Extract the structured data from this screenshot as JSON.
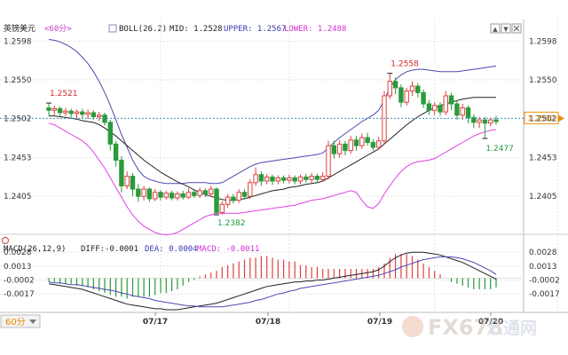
{
  "header": {
    "title": "英镑美元",
    "period": "<60分>",
    "indicator": "BOLL(26.2)",
    "mid_label": "MID: 1.2528",
    "upper_label": "UPPER: 1.2567",
    "lower_label": "LOWER: 1.2488"
  },
  "macd_header": {
    "name": "MACD(26,12,9)",
    "diff_label": "DIFF:-0.0001",
    "dea_label": "DEA: 0.0004",
    "macd_label": "MACD: -0.0011"
  },
  "footer": {
    "period_button": "60分"
  },
  "toolbar": {
    "up_arrow": "▲",
    "down_arrow": "▼"
  },
  "watermark": {
    "logo_text": "FX678",
    "cn_text": "汇通网"
  },
  "colors": {
    "up": "#e04040",
    "down": "#2a9a3a",
    "mid": "#222222",
    "upper": "#4a4ab0",
    "lower": "#e040e0",
    "price_line": "#3a9ac0",
    "current_box": "#f08c00"
  },
  "chart_data": [
    {
      "type": "candlestick",
      "title": "英镑美元",
      "ylim": [
        1.236,
        1.2605
      ],
      "yticks": [
        "1.2598",
        "1.2550",
        "1.2502",
        "1.2453",
        "1.2405"
      ],
      "xticks": [
        "07/17",
        "07/18",
        "07/19",
        "07/20"
      ],
      "current_price": "1.2502",
      "annotations": [
        {
          "text": "1.2521",
          "value": 1.2521
        },
        {
          "text": "1.2382",
          "value": 1.2382
        },
        {
          "text": "1.2558",
          "value": 1.2558
        },
        {
          "text": "1.2477",
          "value": 1.2477
        }
      ],
      "candles": [
        [
          1.2515,
          1.2512,
          1.2521,
          1.2505
        ],
        [
          1.2512,
          1.2514,
          1.2518,
          1.2506
        ],
        [
          1.2514,
          1.2509,
          1.2517,
          1.2504
        ],
        [
          1.2509,
          1.2511,
          1.2515,
          1.2505
        ],
        [
          1.2511,
          1.2508,
          1.2514,
          1.2503
        ],
        [
          1.2508,
          1.251,
          1.2513,
          1.2502
        ],
        [
          1.251,
          1.2507,
          1.2514,
          1.2502
        ],
        [
          1.2507,
          1.2509,
          1.2513,
          1.2501
        ],
        [
          1.2509,
          1.2504,
          1.2512,
          1.25
        ],
        [
          1.2504,
          1.2506,
          1.251,
          1.2499
        ],
        [
          1.2506,
          1.2497,
          1.2509,
          1.2493
        ],
        [
          1.2497,
          1.247,
          1.25,
          1.2462
        ],
        [
          1.247,
          1.245,
          1.2474,
          1.2442
        ],
        [
          1.245,
          1.2418,
          1.2455,
          1.241
        ],
        [
          1.2418,
          1.243,
          1.2436,
          1.2414
        ],
        [
          1.243,
          1.2414,
          1.2434,
          1.2405
        ],
        [
          1.2414,
          1.2405,
          1.242,
          1.2398
        ],
        [
          1.2405,
          1.2414,
          1.2418,
          1.24
        ],
        [
          1.2414,
          1.2402,
          1.2416,
          1.2398
        ],
        [
          1.2402,
          1.241,
          1.2414,
          1.2399
        ],
        [
          1.241,
          1.2404,
          1.2413,
          1.24
        ],
        [
          1.2404,
          1.2409,
          1.2412,
          1.2401
        ],
        [
          1.2409,
          1.2403,
          1.2412,
          1.24
        ],
        [
          1.2403,
          1.2408,
          1.2411,
          1.24
        ],
        [
          1.2408,
          1.2404,
          1.2412,
          1.2401
        ],
        [
          1.2404,
          1.241,
          1.2415,
          1.2402
        ],
        [
          1.241,
          1.2406,
          1.2414,
          1.2403
        ],
        [
          1.2406,
          1.2412,
          1.2416,
          1.2403
        ],
        [
          1.2412,
          1.2408,
          1.2415,
          1.2404
        ],
        [
          1.2408,
          1.2414,
          1.2418,
          1.2405
        ],
        [
          1.2414,
          1.2385,
          1.2416,
          1.2382
        ],
        [
          1.2385,
          1.2395,
          1.2399,
          1.2382
        ],
        [
          1.2395,
          1.2404,
          1.2408,
          1.2391
        ],
        [
          1.2404,
          1.24,
          1.2408,
          1.2396
        ],
        [
          1.24,
          1.241,
          1.2414,
          1.2397
        ],
        [
          1.241,
          1.2405,
          1.2414,
          1.2401
        ],
        [
          1.2405,
          1.2422,
          1.2426,
          1.2402
        ],
        [
          1.2422,
          1.2432,
          1.2441,
          1.2418
        ],
        [
          1.2432,
          1.2424,
          1.2436,
          1.2418
        ],
        [
          1.2424,
          1.2429,
          1.2433,
          1.242
        ],
        [
          1.2429,
          1.2424,
          1.2432,
          1.2419
        ],
        [
          1.2424,
          1.2428,
          1.2431,
          1.242
        ],
        [
          1.2428,
          1.2425,
          1.2431,
          1.2421
        ],
        [
          1.2425,
          1.2428,
          1.2432,
          1.2421
        ],
        [
          1.2428,
          1.2424,
          1.2431,
          1.242
        ],
        [
          1.2424,
          1.2429,
          1.2432,
          1.242
        ],
        [
          1.2429,
          1.2426,
          1.2433,
          1.2422
        ],
        [
          1.2426,
          1.243,
          1.2434,
          1.2422
        ],
        [
          1.243,
          1.2426,
          1.2433,
          1.2421
        ],
        [
          1.2426,
          1.243,
          1.2435,
          1.2423
        ],
        [
          1.243,
          1.2468,
          1.2474,
          1.2426
        ],
        [
          1.2468,
          1.2458,
          1.2474,
          1.2452
        ],
        [
          1.2458,
          1.247,
          1.2475,
          1.2453
        ],
        [
          1.247,
          1.2462,
          1.2474,
          1.2456
        ],
        [
          1.2462,
          1.2475,
          1.248,
          1.2458
        ],
        [
          1.2475,
          1.2468,
          1.248,
          1.2462
        ],
        [
          1.2468,
          1.2478,
          1.2483,
          1.2464
        ],
        [
          1.2478,
          1.2472,
          1.2484,
          1.2468
        ],
        [
          1.2472,
          1.2466,
          1.2476,
          1.2462
        ],
        [
          1.2466,
          1.2474,
          1.2479,
          1.2463
        ],
        [
          1.2474,
          1.253,
          1.2536,
          1.247
        ],
        [
          1.253,
          1.2548,
          1.2558,
          1.2526
        ],
        [
          1.2548,
          1.254,
          1.2553,
          1.2532
        ],
        [
          1.254,
          1.2522,
          1.2544,
          1.2516
        ],
        [
          1.2522,
          1.2536,
          1.254,
          1.2518
        ],
        [
          1.2536,
          1.2542,
          1.2548,
          1.253
        ],
        [
          1.2542,
          1.2534,
          1.2546,
          1.2528
        ],
        [
          1.2534,
          1.252,
          1.2538,
          1.2515
        ],
        [
          1.252,
          1.2512,
          1.2525,
          1.2506
        ],
        [
          1.2512,
          1.2518,
          1.2522,
          1.2506
        ],
        [
          1.2518,
          1.251,
          1.2522,
          1.2505
        ],
        [
          1.251,
          1.253,
          1.2536,
          1.2506
        ],
        [
          1.253,
          1.252,
          1.2534,
          1.2512
        ],
        [
          1.252,
          1.2506,
          1.2524,
          1.25
        ],
        [
          1.2506,
          1.2515,
          1.252,
          1.25
        ],
        [
          1.2515,
          1.2503,
          1.2518,
          1.2496
        ],
        [
          1.2503,
          1.2497,
          1.2507,
          1.249
        ],
        [
          1.2497,
          1.25,
          1.2504,
          1.249
        ],
        [
          1.25,
          1.2496,
          1.2504,
          1.2477
        ],
        [
          1.2496,
          1.25,
          1.2503,
          1.2492
        ],
        [
          1.25,
          1.2498,
          1.2505,
          1.2494
        ]
      ],
      "boll_mid": [
        1.2505,
        1.2505,
        1.2504,
        1.2503,
        1.2502,
        1.2501,
        1.2499,
        1.2498,
        1.2497,
        1.2494,
        1.249,
        1.2485,
        1.248,
        1.2474,
        1.2468,
        1.2462,
        1.2456,
        1.245,
        1.2445,
        1.244,
        1.2435,
        1.2431,
        1.2427,
        1.2423,
        1.242,
        1.2417,
        1.2413,
        1.241,
        1.2407,
        1.2405,
        1.2403,
        1.2401,
        1.24,
        1.24,
        1.2401,
        1.2402,
        1.2404,
        1.2406,
        1.2408,
        1.241,
        1.2412,
        1.2413,
        1.2414,
        1.2416,
        1.2417,
        1.2418,
        1.242,
        1.2421,
        1.2422,
        1.2424,
        1.2428,
        1.2432,
        1.2436,
        1.244,
        1.2444,
        1.2448,
        1.2452,
        1.2456,
        1.246,
        1.2464,
        1.247,
        1.2476,
        1.2482,
        1.2488,
        1.2494,
        1.2499,
        1.2504,
        1.2508,
        1.2512,
        1.2515,
        1.2518,
        1.252,
        1.2522,
        1.2524,
        1.2526,
        1.2527,
        1.2528,
        1.2528,
        1.2528,
        1.2528,
        1.2528
      ],
      "boll_upper": [
        1.26,
        1.2599,
        1.2597,
        1.2594,
        1.259,
        1.2585,
        1.2578,
        1.257,
        1.256,
        1.2548,
        1.2534,
        1.2518,
        1.25,
        1.2482,
        1.2466,
        1.245,
        1.2438,
        1.243,
        1.2426,
        1.2424,
        1.2422,
        1.2421,
        1.2421,
        1.2421,
        1.2421,
        1.2422,
        1.2422,
        1.2422,
        1.2422,
        1.2421,
        1.2421,
        1.2422,
        1.2426,
        1.243,
        1.2434,
        1.2438,
        1.2442,
        1.2445,
        1.2447,
        1.2448,
        1.2449,
        1.245,
        1.2451,
        1.2452,
        1.2453,
        1.2454,
        1.2455,
        1.2456,
        1.2457,
        1.2459,
        1.2465,
        1.2472,
        1.2478,
        1.2483,
        1.2488,
        1.2493,
        1.2498,
        1.2502,
        1.2506,
        1.2512,
        1.2525,
        1.254,
        1.255,
        1.2556,
        1.256,
        1.2562,
        1.2563,
        1.2563,
        1.2562,
        1.2561,
        1.256,
        1.256,
        1.256,
        1.256,
        1.2561,
        1.2562,
        1.2563,
        1.2564,
        1.2565,
        1.2566,
        1.2567
      ],
      "boll_lower": [
        1.2496,
        1.2494,
        1.249,
        1.2486,
        1.2482,
        1.2478,
        1.2474,
        1.2468,
        1.246,
        1.245,
        1.244,
        1.2428,
        1.2416,
        1.2404,
        1.2392,
        1.2382,
        1.2374,
        1.2368,
        1.2364,
        1.236,
        1.2358,
        1.2357,
        1.2358,
        1.236,
        1.2364,
        1.2368,
        1.2372,
        1.2376,
        1.238,
        1.2382,
        1.2384,
        1.2384,
        1.2384,
        1.2384,
        1.2384,
        1.2385,
        1.2386,
        1.2387,
        1.2388,
        1.2389,
        1.239,
        1.2391,
        1.2392,
        1.2393,
        1.2394,
        1.2396,
        1.2398,
        1.24,
        1.2401,
        1.2402,
        1.2404,
        1.2406,
        1.2408,
        1.241,
        1.2412,
        1.241,
        1.24,
        1.2392,
        1.239,
        1.2396,
        1.2408,
        1.2418,
        1.2428,
        1.2436,
        1.2442,
        1.2446,
        1.2448,
        1.2449,
        1.245,
        1.2452,
        1.2456,
        1.246,
        1.2464,
        1.2468,
        1.2472,
        1.2476,
        1.248,
        1.2483,
        1.2485,
        1.2487,
        1.2488
      ]
    },
    {
      "type": "macd",
      "title": "MACD(26,12,9)",
      "ylim": [
        -0.0035,
        0.0032
      ],
      "yticks": [
        "0.0028",
        "0.0013",
        "-0.0002",
        "-0.0017"
      ],
      "diff": [
        -0.0006,
        -0.0007,
        -0.0008,
        -0.0009,
        -0.001,
        -0.0011,
        -0.0012,
        -0.0014,
        -0.0016,
        -0.0018,
        -0.002,
        -0.0022,
        -0.0024,
        -0.0026,
        -0.0028,
        -0.0029,
        -0.003,
        -0.0031,
        -0.0032,
        -0.0033,
        -0.0033,
        -0.0034,
        -0.0034,
        -0.0034,
        -0.0033,
        -0.0032,
        -0.0031,
        -0.003,
        -0.0029,
        -0.0028,
        -0.0027,
        -0.0025,
        -0.0023,
        -0.0021,
        -0.0019,
        -0.0017,
        -0.0015,
        -0.0013,
        -0.0011,
        -0.0009,
        -0.0008,
        -0.0007,
        -0.0006,
        -0.0005,
        -0.0004,
        -0.0004,
        -0.0003,
        -0.0003,
        -0.0002,
        -0.0002,
        -0.0001,
        0.0,
        0.0001,
        0.0002,
        0.0003,
        0.0004,
        0.0005,
        0.0006,
        0.0007,
        0.0009,
        0.0013,
        0.0018,
        0.0022,
        0.0025,
        0.0027,
        0.0028,
        0.0028,
        0.0028,
        0.0027,
        0.0026,
        0.0025,
        0.0023,
        0.0021,
        0.0019,
        0.0017,
        0.0014,
        0.0011,
        0.0008,
        0.0005,
        0.0002,
        -0.0001
      ],
      "dea": [
        -0.0004,
        -0.0005,
        -0.0005,
        -0.0006,
        -0.0007,
        -0.0007,
        -0.0008,
        -0.0009,
        -0.001,
        -0.0011,
        -0.0012,
        -0.0013,
        -0.0014,
        -0.0016,
        -0.0017,
        -0.0019,
        -0.002,
        -0.0021,
        -0.0022,
        -0.0024,
        -0.0025,
        -0.0026,
        -0.0027,
        -0.0028,
        -0.0029,
        -0.003,
        -0.003,
        -0.0031,
        -0.0031,
        -0.0031,
        -0.0031,
        -0.0031,
        -0.003,
        -0.0029,
        -0.0028,
        -0.0027,
        -0.0026,
        -0.0024,
        -0.0023,
        -0.0021,
        -0.0019,
        -0.0017,
        -0.0016,
        -0.0014,
        -0.0013,
        -0.0011,
        -0.001,
        -0.0009,
        -0.0008,
        -0.0007,
        -0.0006,
        -0.0005,
        -0.0004,
        -0.0003,
        -0.0002,
        -0.0001,
        0.0,
        0.0001,
        0.0002,
        0.0003,
        0.0005,
        0.0007,
        0.0009,
        0.0012,
        0.0014,
        0.0016,
        0.0018,
        0.002,
        0.0021,
        0.0022,
        0.0023,
        0.0023,
        0.0023,
        0.0022,
        0.0021,
        0.0019,
        0.0017,
        0.0014,
        0.0011,
        0.0008,
        0.0004
      ]
    }
  ]
}
